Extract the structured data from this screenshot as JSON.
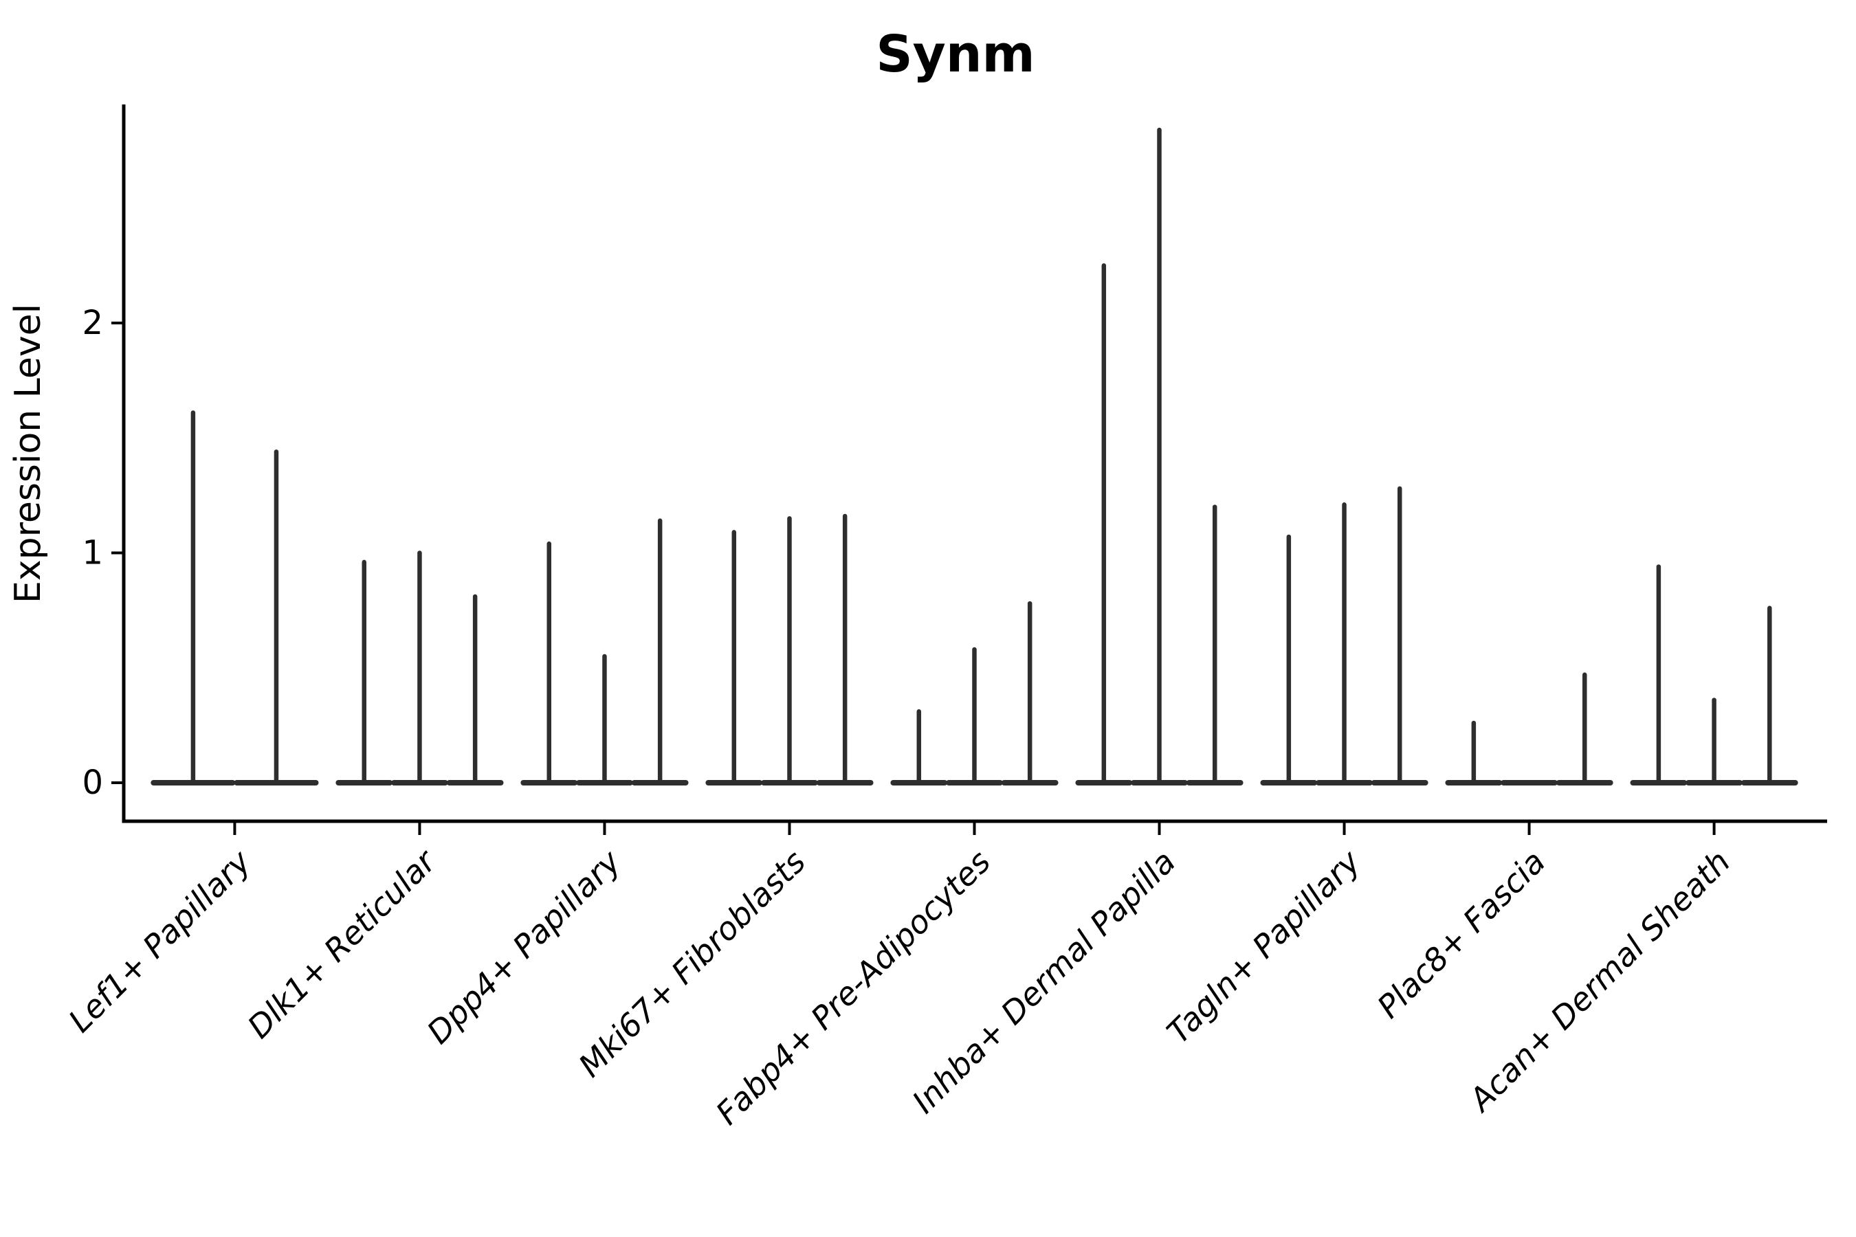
{
  "chart_data": {
    "type": "violin",
    "title": "Synm",
    "ylabel": "Expression Level",
    "xlabel": "",
    "yticks": [
      0,
      1,
      2
    ],
    "ylim": [
      -0.17,
      2.94
    ],
    "grid": false,
    "legend": "none",
    "description": "Stacked-style violin plot of Synm expression per fibroblast cluster; violins are extremely thin spikes rising from a flat base at 0, several violins per cluster.",
    "groups": [
      {
        "category": "Lef1+ Papillary",
        "violin_max_expression": [
          1.61,
          1.44
        ]
      },
      {
        "category": "Dlk1+ Reticular",
        "violin_max_expression": [
          0.96,
          1.0,
          0.81
        ]
      },
      {
        "category": "Dpp4+ Papillary",
        "violin_max_expression": [
          1.04,
          0.55,
          1.14
        ]
      },
      {
        "category": "Mki67+ Fibroblasts",
        "violin_max_expression": [
          1.09,
          1.15,
          1.16
        ]
      },
      {
        "category": "Fabp4+ Pre-Adipocytes",
        "violin_max_expression": [
          0.31,
          0.58,
          0.78
        ]
      },
      {
        "category": "Inhba+ Dermal Papilla",
        "violin_max_expression": [
          2.25,
          2.84,
          1.2
        ]
      },
      {
        "category": "Tagln+ Papillary",
        "violin_max_expression": [
          1.07,
          1.21,
          1.28
        ]
      },
      {
        "category": "Plac8+ Fascia",
        "violin_max_expression": [
          0.26,
          0.0,
          0.47
        ]
      },
      {
        "category": "Acan+ Dermal Sheath",
        "violin_max_expression": [
          0.94,
          0.36,
          0.76
        ]
      }
    ],
    "colors": {
      "violin": "#2e2e2e",
      "axis": "#000000",
      "text": "#000000",
      "background": "#ffffff"
    }
  }
}
